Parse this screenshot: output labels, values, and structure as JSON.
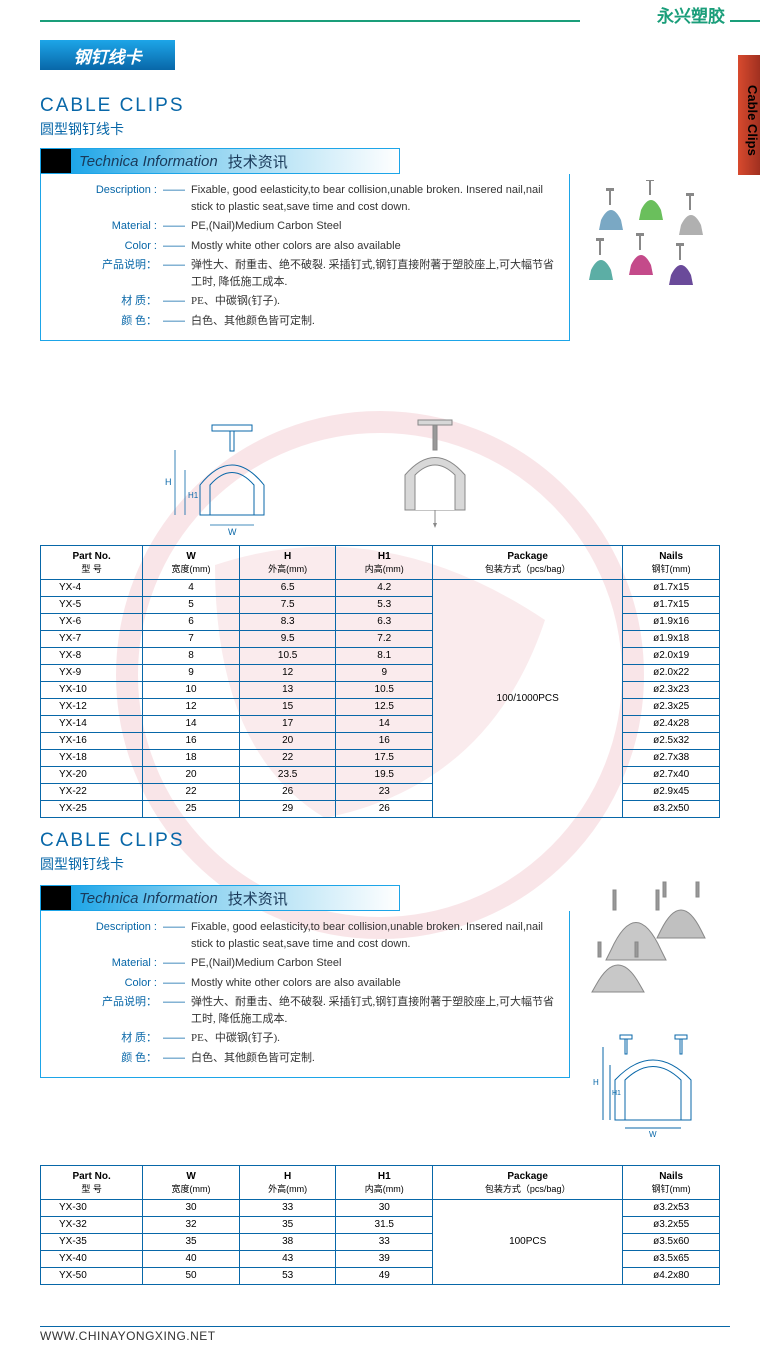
{
  "brand": "永兴塑胶",
  "side_tab": "Cable Clips",
  "section_tab": "钢钉线卡",
  "footer_url": "WWW.CHINAYONGXING.NET",
  "colors": {
    "primary": "#0867a8",
    "accent": "#1da5e8",
    "green": "#1a9e7a",
    "red_grad_a": "#d84a2e",
    "red_grad_b": "#a03020",
    "text": "#333333",
    "wm": "#c8102e"
  },
  "section1": {
    "title_en": "CABLE CLIPS",
    "title_cn": "圆型钢钉线卡",
    "tech_en": "Technica Information",
    "tech_cn": "技术资讯",
    "rows": [
      {
        "label": "Description :",
        "value": "Fixable, good eelasticity,to bear collision,unable broken. Insered nail,nail stick to plastic seat,save time and cost down."
      },
      {
        "label": "Material :",
        "value": "PE,(Nail)Medium Carbon Steel"
      },
      {
        "label": "Color :",
        "value": "Mostly white other colors are also available"
      },
      {
        "label": "产品说明：",
        "value": "弹性大、耐重击、绝不破裂. 采插钉式,钢钉直接附著于塑胶座上,可大幅节省工时, 降低施工成本.",
        "cn": true
      },
      {
        "label": "材 质：",
        "value": "PE、中碳钢(钉子).",
        "cn": true
      },
      {
        "label": "颜 色：",
        "value": "白色、其他颜色皆可定制.",
        "cn": true
      }
    ],
    "table": {
      "headers": [
        {
          "en": "Part No.",
          "cn": "型 号"
        },
        {
          "en": "W",
          "cn": "宽度(mm)"
        },
        {
          "en": "H",
          "cn": "外高(mm)"
        },
        {
          "en": "H1",
          "cn": "内高(mm)"
        },
        {
          "en": "Package",
          "cn": "包装方式（pcs/bag）"
        },
        {
          "en": "Nails",
          "cn": "钢钉(mm)"
        }
      ],
      "package": "100/1000PCS",
      "rows": [
        [
          "YX-4",
          "4",
          "6.5",
          "4.2",
          "ø1.7x15"
        ],
        [
          "YX-5",
          "5",
          "7.5",
          "5.3",
          "ø1.7x15"
        ],
        [
          "YX-6",
          "6",
          "8.3",
          "6.3",
          "ø1.9x16"
        ],
        [
          "YX-7",
          "7",
          "9.5",
          "7.2",
          "ø1.9x18"
        ],
        [
          "YX-8",
          "8",
          "10.5",
          "8.1",
          "ø2.0x19"
        ],
        [
          "YX-9",
          "9",
          "12",
          "9",
          "ø2.0x22"
        ],
        [
          "YX-10",
          "10",
          "13",
          "10.5",
          "ø2.3x23"
        ],
        [
          "YX-12",
          "12",
          "15",
          "12.5",
          "ø2.3x25"
        ],
        [
          "YX-14",
          "14",
          "17",
          "14",
          "ø2.4x28"
        ],
        [
          "YX-16",
          "16",
          "20",
          "16",
          "ø2.5x32"
        ],
        [
          "YX-18",
          "18",
          "22",
          "17.5",
          "ø2.7x38"
        ],
        [
          "YX-20",
          "20",
          "23.5",
          "19.5",
          "ø2.7x40"
        ],
        [
          "YX-22",
          "22",
          "26",
          "23",
          "ø2.9x45"
        ],
        [
          "YX-25",
          "25",
          "29",
          "26",
          "ø3.2x50"
        ]
      ]
    }
  },
  "section2": {
    "title_en": "CABLE CLIPS",
    "title_cn": "圆型钢钉线卡",
    "tech_en": "Technica Information",
    "tech_cn": "技术资讯",
    "rows": [
      {
        "label": "Description :",
        "value": "Fixable, good eelasticity,to bear collision,unable broken. Insered nail,nail stick to plastic seat,save time and cost down."
      },
      {
        "label": "Material :",
        "value": "PE,(Nail)Medium Carbon Steel"
      },
      {
        "label": "Color :",
        "value": "Mostly white other colors are also available"
      },
      {
        "label": "产品说明：",
        "value": "弹性大、耐重击、绝不破裂. 采插钉式,钢钉直接附著于塑胶座上,可大幅节省工时, 降低施工成本.",
        "cn": true
      },
      {
        "label": "材 质：",
        "value": "PE、中碳钢(钉子).",
        "cn": true
      },
      {
        "label": "颜 色：",
        "value": "白色、其他颜色皆可定制.",
        "cn": true
      }
    ],
    "table": {
      "headers": [
        {
          "en": "Part No.",
          "cn": "型 号"
        },
        {
          "en": "W",
          "cn": "宽度(mm)"
        },
        {
          "en": "H",
          "cn": "外高(mm)"
        },
        {
          "en": "H1",
          "cn": "内高(mm)"
        },
        {
          "en": "Package",
          "cn": "包装方式（pcs/bag）"
        },
        {
          "en": "Nails",
          "cn": "钢钉(mm)"
        }
      ],
      "package": "100PCS",
      "rows": [
        [
          "YX-30",
          "30",
          "33",
          "30",
          "ø3.2x53"
        ],
        [
          "YX-32",
          "32",
          "35",
          "31.5",
          "ø3.2x55"
        ],
        [
          "YX-35",
          "35",
          "38",
          "33",
          "ø3.5x60"
        ],
        [
          "YX-40",
          "40",
          "43",
          "39",
          "ø3.5x65"
        ],
        [
          "YX-50",
          "50",
          "53",
          "49",
          "ø4.2x80"
        ]
      ]
    }
  }
}
